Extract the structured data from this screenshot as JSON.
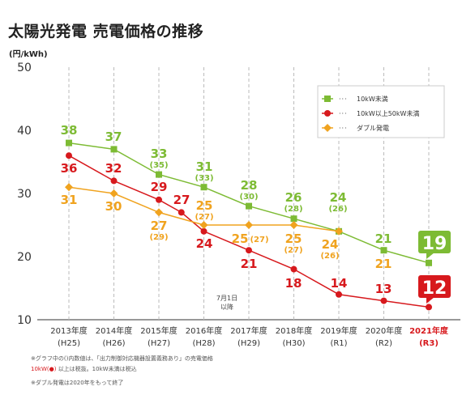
{
  "title": "太陽光発電 売電価格の推移",
  "colors": {
    "green": "#7dbb34",
    "red": "#d7191d",
    "orange": "#f0a31f",
    "grid": "#bbbbbb",
    "axis": "#333333"
  },
  "chart_data": {
    "type": "line",
    "title": "太陽光発電 売電価格の推移",
    "ylabel": "(円/kWh)",
    "ylim": [
      10,
      50
    ],
    "yticks": [
      10,
      20,
      30,
      40,
      50
    ],
    "grid": true,
    "legend_position": "top-right",
    "categories": [
      {
        "label": "2013年度",
        "sub": "(H25)",
        "highlight": false
      },
      {
        "label": "2014年度",
        "sub": "(H26)",
        "highlight": false
      },
      {
        "label": "2015年度",
        "sub": "(H27)",
        "highlight": false
      },
      {
        "label": "2016年度",
        "sub": "(H28)",
        "highlight": false
      },
      {
        "label": "2017年度",
        "sub": "(H29)",
        "highlight": false
      },
      {
        "label": "2018年度",
        "sub": "(H30)",
        "highlight": false
      },
      {
        "label": "2019年度",
        "sub": "(R1)",
        "highlight": false
      },
      {
        "label": "2020年度",
        "sub": "(R2)",
        "highlight": false
      },
      {
        "label": "2021年度",
        "sub": "(R3)",
        "highlight": true
      }
    ],
    "series": [
      {
        "name": "10kW未満",
        "color": "#7dbb34",
        "marker": "square",
        "points": [
          [
            0,
            38
          ],
          [
            1,
            37
          ],
          [
            2,
            33
          ],
          [
            3,
            31
          ],
          [
            4,
            28
          ],
          [
            5,
            26
          ],
          [
            6,
            24
          ],
          [
            7,
            21
          ],
          [
            8,
            19
          ]
        ]
      },
      {
        "name": "10kW以上50kW未満",
        "color": "#d7191d",
        "marker": "circle",
        "points": [
          [
            0,
            36
          ],
          [
            1,
            32
          ],
          [
            2,
            29
          ],
          [
            2.5,
            27
          ],
          [
            3,
            24
          ],
          [
            4,
            21
          ],
          [
            5,
            18
          ],
          [
            6,
            14
          ],
          [
            7,
            13
          ],
          [
            8,
            12
          ]
        ]
      },
      {
        "name": "ダブル発電",
        "color": "#f0a31f",
        "marker": "diamond",
        "points": [
          [
            0,
            31
          ],
          [
            1,
            30
          ],
          [
            2,
            27
          ],
          [
            3,
            25
          ],
          [
            4,
            25
          ],
          [
            5,
            25
          ],
          [
            6,
            24
          ]
        ]
      }
    ],
    "labels": [
      {
        "text": "38",
        "sub": "",
        "color": "#7dbb34",
        "cat": 0,
        "val": 38
      },
      {
        "text": "37",
        "sub": "",
        "color": "#7dbb34",
        "cat": 1,
        "val": 37
      },
      {
        "text": "33",
        "sub": "(35)",
        "color": "#7dbb34",
        "cat": 2,
        "val": 33
      },
      {
        "text": "31",
        "sub": "(33)",
        "color": "#7dbb34",
        "cat": 3,
        "val": 31
      },
      {
        "text": "28",
        "sub": "(30)",
        "color": "#7dbb34",
        "cat": 4,
        "val": 28
      },
      {
        "text": "26",
        "sub": "(28)",
        "color": "#7dbb34",
        "cat": 5,
        "val": 26
      },
      {
        "text": "24",
        "sub": "(26)",
        "color": "#7dbb34",
        "cat": 6,
        "val": 24
      },
      {
        "text": "21",
        "sub": "",
        "color": "#7dbb34",
        "cat": 7,
        "val": 21
      },
      {
        "text": "36",
        "sub": "",
        "color": "#d7191d",
        "cat": 0,
        "val": 36
      },
      {
        "text": "32",
        "sub": "",
        "color": "#d7191d",
        "cat": 1,
        "val": 32
      },
      {
        "text": "29",
        "sub": "",
        "color": "#d7191d",
        "cat": 2,
        "val": 29
      },
      {
        "text": "27",
        "sub": "",
        "color": "#d7191d",
        "cat": 2.5,
        "val": 27
      },
      {
        "text": "24",
        "sub": "",
        "color": "#d7191d",
        "cat": 3,
        "val": 24
      },
      {
        "text": "21",
        "sub": "",
        "color": "#d7191d",
        "cat": 4,
        "val": 21
      },
      {
        "text": "18",
        "sub": "",
        "color": "#d7191d",
        "cat": 5,
        "val": 18
      },
      {
        "text": "14",
        "sub": "",
        "color": "#d7191d",
        "cat": 6,
        "val": 14
      },
      {
        "text": "13",
        "sub": "",
        "color": "#d7191d",
        "cat": 7,
        "val": 13
      },
      {
        "text": "31",
        "sub": "",
        "color": "#f0a31f",
        "cat": 0,
        "val": 31
      },
      {
        "text": "30",
        "sub": "",
        "color": "#f0a31f",
        "cat": 1,
        "val": 30
      },
      {
        "text": "27",
        "sub": "(29)",
        "color": "#f0a31f",
        "cat": 2,
        "val": 27
      },
      {
        "text": "25",
        "sub": "(27)",
        "color": "#f0a31f",
        "cat": 3,
        "val": 25
      },
      {
        "text": "25",
        "sub": "(27)",
        "color": "#f0a31f",
        "cat": 4,
        "val": 25
      },
      {
        "text": "25",
        "sub": "(27)",
        "color": "#f0a31f",
        "cat": 5,
        "val": 25
      },
      {
        "text": "24",
        "sub": "(26)",
        "color": "#f0a31f",
        "cat": 6,
        "val": 24
      },
      {
        "text": "21",
        "sub": "",
        "color": "#f0a31f",
        "cat": 7,
        "val": 21
      }
    ],
    "callouts": [
      {
        "text": "19",
        "color": "#7dbb34"
      },
      {
        "text": "12",
        "color": "#d7191d"
      }
    ],
    "annotation": [
      "7月1日",
      "以降"
    ]
  },
  "notes": {
    "line1": "※グラフ中の()内数値は、「出力制御対応機器設置義務あり」の売電価格",
    "line2_red": "10kW(●)",
    "line2_rest": "以上は税抜。10kW未満は税込",
    "line3": "※ダブル発電は2020年をもって終了"
  }
}
